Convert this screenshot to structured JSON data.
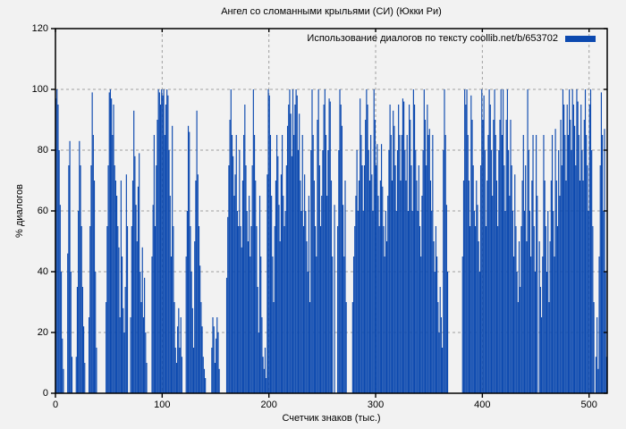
{
  "title": "Ангел со сломанными крыльями (СИ) (Юкки Ри)",
  "legend": {
    "label": "Использование диалогов по тексту coollib.net/b/653702"
  },
  "axes": {
    "x": {
      "label": "Счетчик знаков (тыс.)"
    },
    "y": {
      "label": "% диалогов"
    }
  },
  "colors": {
    "bar": "#0c49af",
    "background": "#f2f2f2",
    "grid": "#a0a0a0",
    "frame": "#000000",
    "text": "#000000"
  },
  "chart_data": {
    "type": "bar",
    "title": "Ангел со сломанными крыльями (СИ) (Юкки Ри)",
    "legend": "Использование диалогов по тексту coollib.net/b/653702",
    "xlabel": "Счетчик знаков (тыс.)",
    "ylabel": "% диалогов",
    "xlim": [
      0,
      517
    ],
    "ylim": [
      0,
      120
    ],
    "x_ticks": [
      0,
      100,
      200,
      300,
      400,
      500
    ],
    "y_ticks": [
      0,
      20,
      40,
      60,
      80,
      100,
      120
    ],
    "grid": true,
    "legend_position": "top-right",
    "x_start": 0,
    "x_step": 1,
    "values": [
      97,
      100,
      95,
      80,
      62,
      40,
      18,
      8,
      0,
      0,
      0,
      46,
      75,
      83,
      40,
      12,
      0,
      0,
      0,
      12,
      35,
      60,
      83,
      75,
      55,
      35,
      22,
      10,
      0,
      0,
      0,
      25,
      55,
      75,
      99,
      85,
      70,
      40,
      15,
      0,
      0,
      0,
      0,
      0,
      0,
      0,
      0,
      30,
      55,
      75,
      99,
      100,
      97,
      85,
      95,
      75,
      70,
      65,
      55,
      48,
      25,
      70,
      45,
      28,
      20,
      35,
      72,
      55,
      0,
      0,
      25,
      55,
      70,
      93,
      78,
      62,
      50,
      68,
      79,
      40,
      30,
      48,
      25,
      38,
      20,
      10,
      0,
      0,
      0,
      0,
      45,
      62,
      85,
      55,
      75,
      90,
      100,
      99,
      95,
      100,
      98,
      100,
      85,
      95,
      100,
      98,
      80,
      65,
      45,
      88,
      55,
      30,
      15,
      10,
      22,
      28,
      15,
      25,
      12,
      0,
      0,
      0,
      45,
      60,
      88,
      86,
      55,
      40,
      28,
      15,
      50,
      70,
      93,
      72,
      55,
      42,
      30,
      22,
      12,
      8,
      5,
      0,
      0,
      0,
      0,
      0,
      15,
      25,
      22,
      10,
      18,
      25,
      20,
      8,
      0,
      0,
      0,
      0,
      0,
      0,
      38,
      58,
      75,
      90,
      100,
      85,
      78,
      65,
      72,
      85,
      60,
      55,
      80,
      55,
      48,
      70,
      85,
      95,
      75,
      60,
      50,
      65,
      45,
      55,
      75,
      100,
      85,
      70,
      55,
      35,
      20,
      65,
      45,
      25,
      12,
      8,
      15,
      5,
      72,
      100,
      98,
      85,
      65,
      45,
      30,
      55,
      70,
      85,
      78,
      62,
      50,
      72,
      85,
      65,
      55,
      60,
      75,
      88,
      95,
      100,
      92,
      78,
      100,
      85,
      95,
      100,
      98,
      80,
      92,
      70,
      60,
      85,
      55,
      72,
      60,
      50,
      40,
      65,
      30,
      80,
      100,
      85,
      70,
      55,
      45,
      90,
      100,
      75,
      55,
      65,
      80,
      95,
      100,
      85,
      65,
      80,
      97,
      96,
      70,
      45,
      0,
      62,
      0,
      0,
      55,
      80,
      100,
      95,
      88,
      62,
      45,
      70,
      30,
      0,
      0,
      0,
      0,
      0,
      30,
      45,
      55,
      65,
      80,
      60,
      70,
      97,
      85,
      75,
      60,
      75,
      90,
      100,
      95,
      80,
      70,
      85,
      72,
      60,
      100,
      90,
      75,
      82,
      65,
      55,
      70,
      82,
      68,
      55,
      45,
      60,
      50,
      65,
      80,
      95,
      85,
      70,
      93,
      88,
      75,
      60,
      80,
      95,
      85,
      70,
      85,
      97,
      96,
      80,
      70,
      85,
      60,
      95,
      90,
      75,
      60,
      100,
      95,
      80,
      70,
      60,
      75,
      55,
      45,
      65,
      80,
      100,
      90,
      75,
      95,
      85,
      87,
      70,
      60,
      85,
      50,
      40,
      55,
      45,
      30,
      20,
      35,
      25,
      15,
      80,
      100,
      85,
      62,
      40,
      0,
      0,
      0,
      0,
      0,
      0,
      0,
      0,
      0,
      0,
      0,
      0,
      0,
      45,
      70,
      100,
      95,
      100,
      85,
      70,
      55,
      98,
      90,
      75,
      60,
      55,
      70,
      62,
      50,
      40,
      75,
      100,
      90,
      98,
      80,
      55,
      70,
      85,
      100,
      95,
      80,
      65,
      90,
      100,
      85,
      70,
      55,
      80,
      90,
      100,
      85,
      100,
      75,
      60,
      90,
      100,
      80,
      65,
      90,
      75,
      60,
      45,
      72,
      55,
      40,
      30,
      50,
      35,
      55,
      70,
      85,
      60,
      75,
      50,
      100,
      80,
      60,
      45,
      70,
      85,
      55,
      40,
      85,
      65,
      0,
      50,
      35,
      25,
      45,
      85,
      70,
      55,
      40,
      60,
      30,
      50,
      70,
      85,
      60,
      45,
      87,
      70,
      55,
      80,
      65,
      90,
      75,
      100,
      95,
      85,
      70,
      95,
      85,
      100,
      90,
      80,
      100,
      95,
      88,
      75,
      100,
      96,
      85,
      70,
      95,
      80,
      70,
      90,
      100,
      85,
      75,
      60,
      95,
      100,
      80,
      55,
      30,
      0,
      12,
      25,
      8,
      45,
      75,
      99,
      85,
      60,
      87,
      40,
      12
    ]
  }
}
